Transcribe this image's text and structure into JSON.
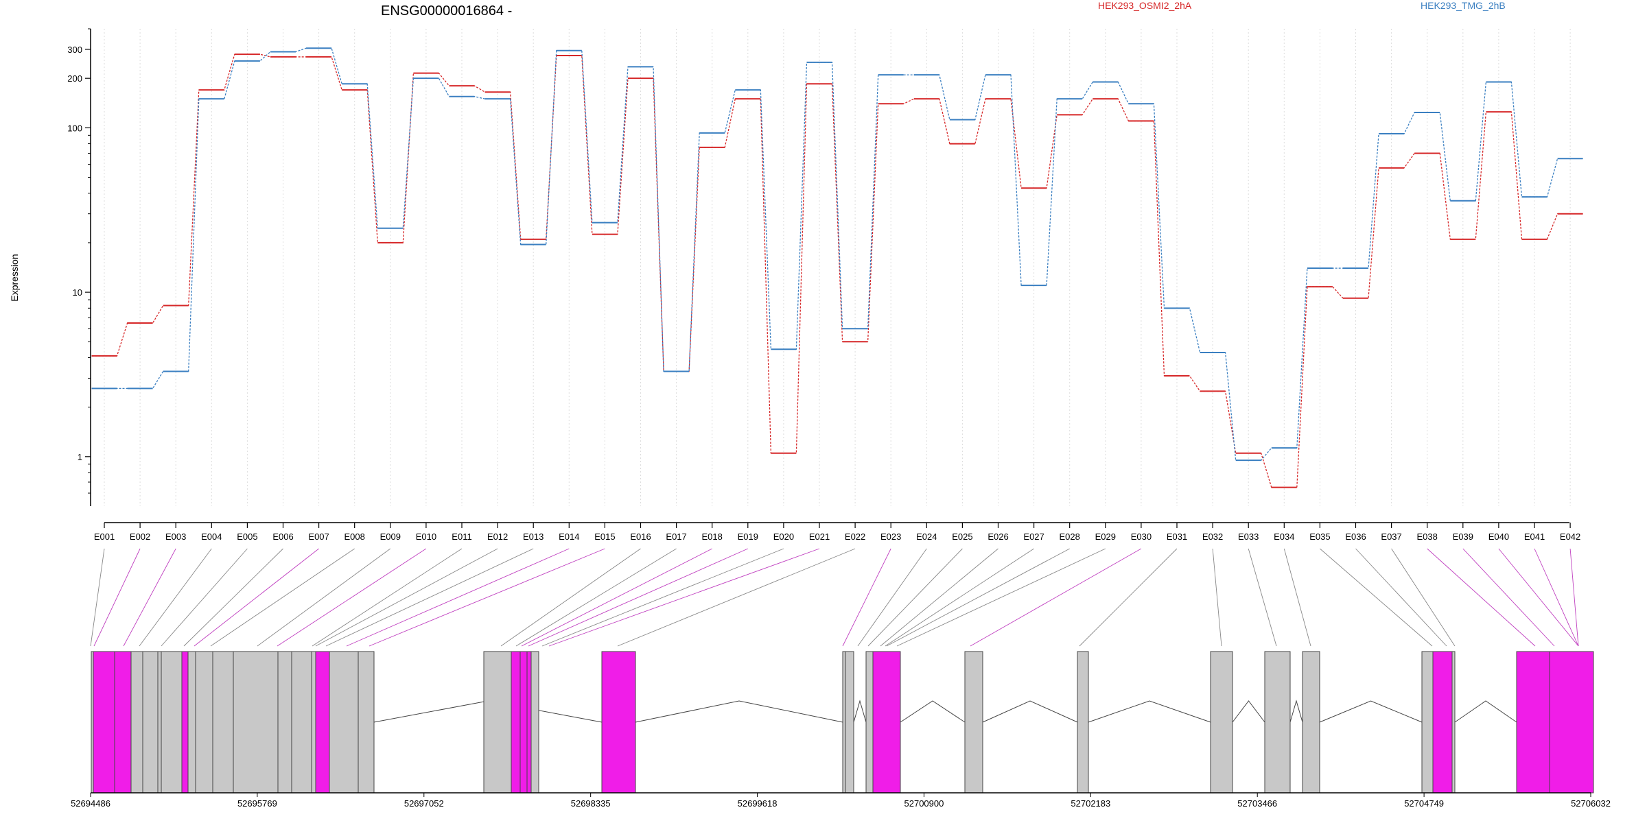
{
  "chart_data": {
    "type": "line",
    "title": "ENSG00000016864 -",
    "ylabel": "Expression",
    "xlabel": "",
    "yscale": "log",
    "ylim": [
      0.5,
      400
    ],
    "y_ticks": [
      1,
      10,
      100,
      200,
      300
    ],
    "y_tick_labels": [
      "1",
      "10",
      "100",
      "200",
      "300"
    ],
    "grid": "vertical dotted lines at each exon",
    "legend_position": "top",
    "categories": [
      "E001",
      "E002",
      "E003",
      "E004",
      "E005",
      "E006",
      "E007",
      "E008",
      "E009",
      "E010",
      "E011",
      "E012",
      "E013",
      "E014",
      "E015",
      "E016",
      "E017",
      "E018",
      "E019",
      "E020",
      "E021",
      "E022",
      "E023",
      "E024",
      "E025",
      "E026",
      "E027",
      "E028",
      "E029",
      "E030",
      "E031",
      "E032",
      "E033",
      "E034",
      "E035",
      "E036",
      "E037",
      "E038",
      "E039",
      "E040",
      "E041",
      "E042"
    ],
    "series": [
      {
        "name": "HEK293_OSMI2_2hA",
        "color": "#d62728",
        "values": [
          4.1,
          6.5,
          8.3,
          170,
          280,
          270,
          270,
          170,
          20,
          215,
          180,
          165,
          21,
          275,
          22.5,
          200,
          3.3,
          76,
          150,
          1.05,
          185,
          5,
          140,
          150,
          80,
          150,
          43,
          120,
          150,
          110,
          3.1,
          2.5,
          1.05,
          0.65,
          10.8,
          9.2,
          57,
          70,
          21,
          125,
          21,
          30
        ]
      },
      {
        "name": "HEK293_TMG_2hB",
        "color": "#3a7fc1",
        "values": [
          2.6,
          2.6,
          3.3,
          150,
          255,
          290,
          305,
          185,
          24.5,
          200,
          155,
          150,
          19.5,
          295,
          26.5,
          235,
          3.3,
          93,
          170,
          4.5,
          250,
          6,
          210,
          210,
          112,
          210,
          11,
          150,
          190,
          140,
          8,
          4.3,
          0.95,
          1.13,
          14,
          14,
          92,
          124,
          36,
          190,
          38,
          65
        ]
      }
    ],
    "genomic_axis": {
      "labels": [
        "52694486",
        "52695769",
        "52697052",
        "52698335",
        "52699618",
        "52700900",
        "52702183",
        "52703466",
        "52704749",
        "52706032"
      ],
      "start": 52694486,
      "end": 52706032
    },
    "colors": {
      "highlighted_exon": "#f01de8",
      "exon": "#c8c8c8",
      "connector_highlight": "#c040c0",
      "connector": "#888888"
    }
  }
}
